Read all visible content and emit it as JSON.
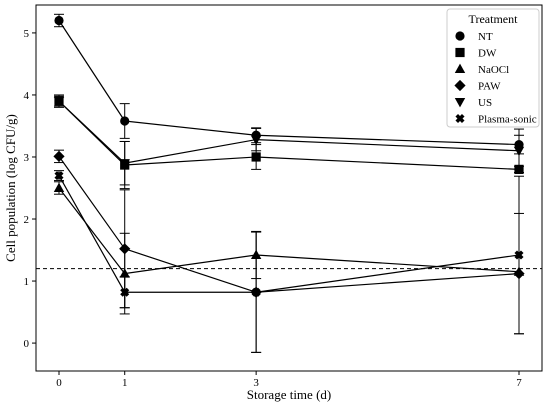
{
  "chart_data": {
    "type": "line",
    "title": "",
    "xlabel": "Storage time (d)",
    "ylabel": "Cell population (log CFU/g)",
    "x": [
      0,
      1,
      3,
      7
    ],
    "xticks": [
      "0",
      "1",
      "3",
      "7"
    ],
    "yticks": [
      "0",
      "1",
      "2",
      "3",
      "4",
      "5"
    ],
    "xlim": [
      -0.35,
      7.35
    ],
    "ylim": [
      -0.45,
      5.45
    ],
    "grid": false,
    "legend_title": "Treatment",
    "legend_position": "top-right",
    "reference_line": {
      "y": 1.2,
      "style": "dashed"
    },
    "series": [
      {
        "name": "NT",
        "marker": "circle",
        "values": [
          5.2,
          3.58,
          3.35,
          3.2
        ],
        "errors": [
          0.1,
          0.28,
          0.12,
          0.15
        ]
      },
      {
        "name": "DW",
        "marker": "square",
        "values": [
          3.9,
          2.87,
          3.0,
          2.8
        ],
        "errors": [
          0.1,
          0.38,
          0.2,
          0.05
        ]
      },
      {
        "name": "NaOCl",
        "marker": "triangle-up",
        "values": [
          2.5,
          1.12,
          1.42,
          1.15
        ],
        "errors": [
          0.1,
          0.65,
          0.38,
          0.0
        ]
      },
      {
        "name": "PAW",
        "marker": "diamond",
        "values": [
          3.01,
          1.52,
          0.82,
          1.12
        ],
        "errors": [
          0.1,
          0.95,
          0.97,
          0.97
        ]
      },
      {
        "name": "US",
        "marker": "triangle-down",
        "values": [
          3.9,
          2.9,
          3.28,
          3.1
        ],
        "errors": [
          0.08,
          0.35,
          0.18,
          0.35
        ]
      },
      {
        "name": "Plasma-sonic",
        "marker": "plus",
        "values": [
          2.7,
          0.82,
          0.82,
          1.42
        ],
        "errors": [
          0.08,
          0.25,
          0.97,
          1.27
        ]
      }
    ]
  }
}
